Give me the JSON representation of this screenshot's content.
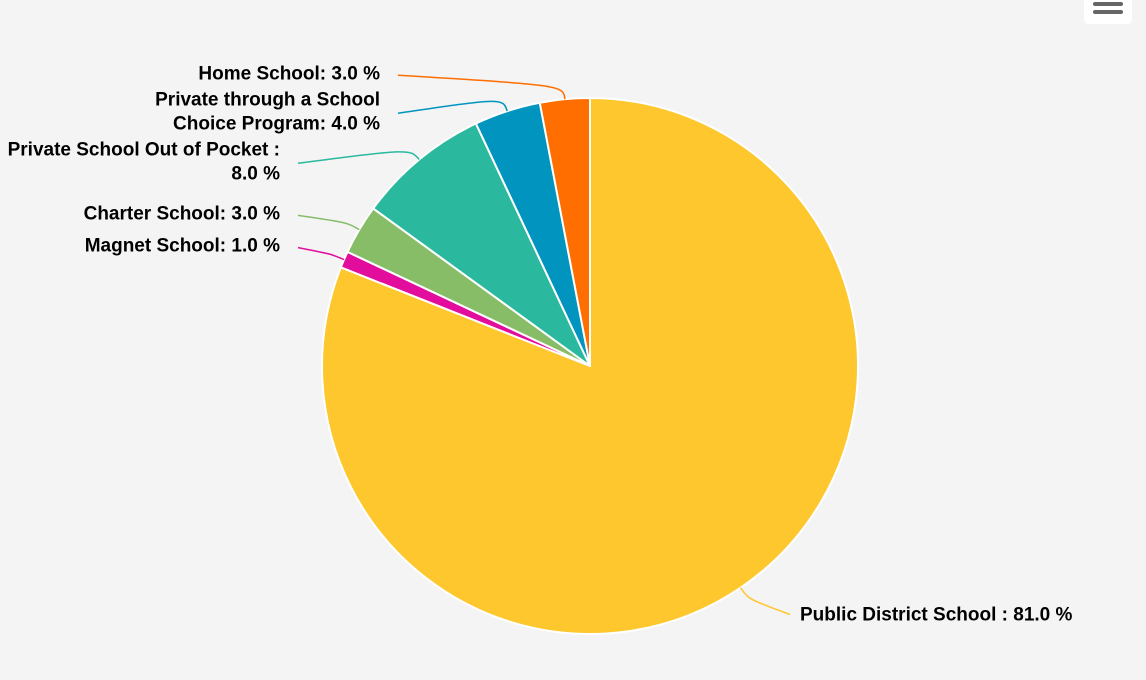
{
  "chart_data": {
    "type": "pie",
    "title": "",
    "start_angle_deg": 0,
    "direction": "clockwise",
    "colors": {
      "background": "#f4f4f4",
      "slice_border": "#ffffff"
    },
    "slices": [
      {
        "name": "Public District School",
        "value": 81.0,
        "label": "Public District School : 81.0 %",
        "color": "#fec72e",
        "label_side": "right"
      },
      {
        "name": "Magnet School",
        "value": 1.0,
        "label": "Magnet School: 1.0 %",
        "color": "#e20d9c",
        "label_side": "left"
      },
      {
        "name": "Charter School",
        "value": 3.0,
        "label": "Charter School: 3.0 %",
        "color": "#88bd67",
        "label_side": "left"
      },
      {
        "name": "Private School Out of Pocket",
        "value": 8.0,
        "label": "Private School Out of Pocket : 8.0 %",
        "color": "#2ab99f",
        "label_side": "left"
      },
      {
        "name": "Private through a School Choice Program",
        "value": 4.0,
        "label": "Private through a School Choice Program: 4.0 %",
        "color": "#0194bf",
        "label_side": "left"
      },
      {
        "name": "Home School",
        "value": 3.0,
        "label": "Home School: 3.0 %",
        "color": "#ff6e00",
        "label_side": "left"
      }
    ]
  },
  "toolbar": {
    "menu_icon": "hamburger-icon"
  }
}
